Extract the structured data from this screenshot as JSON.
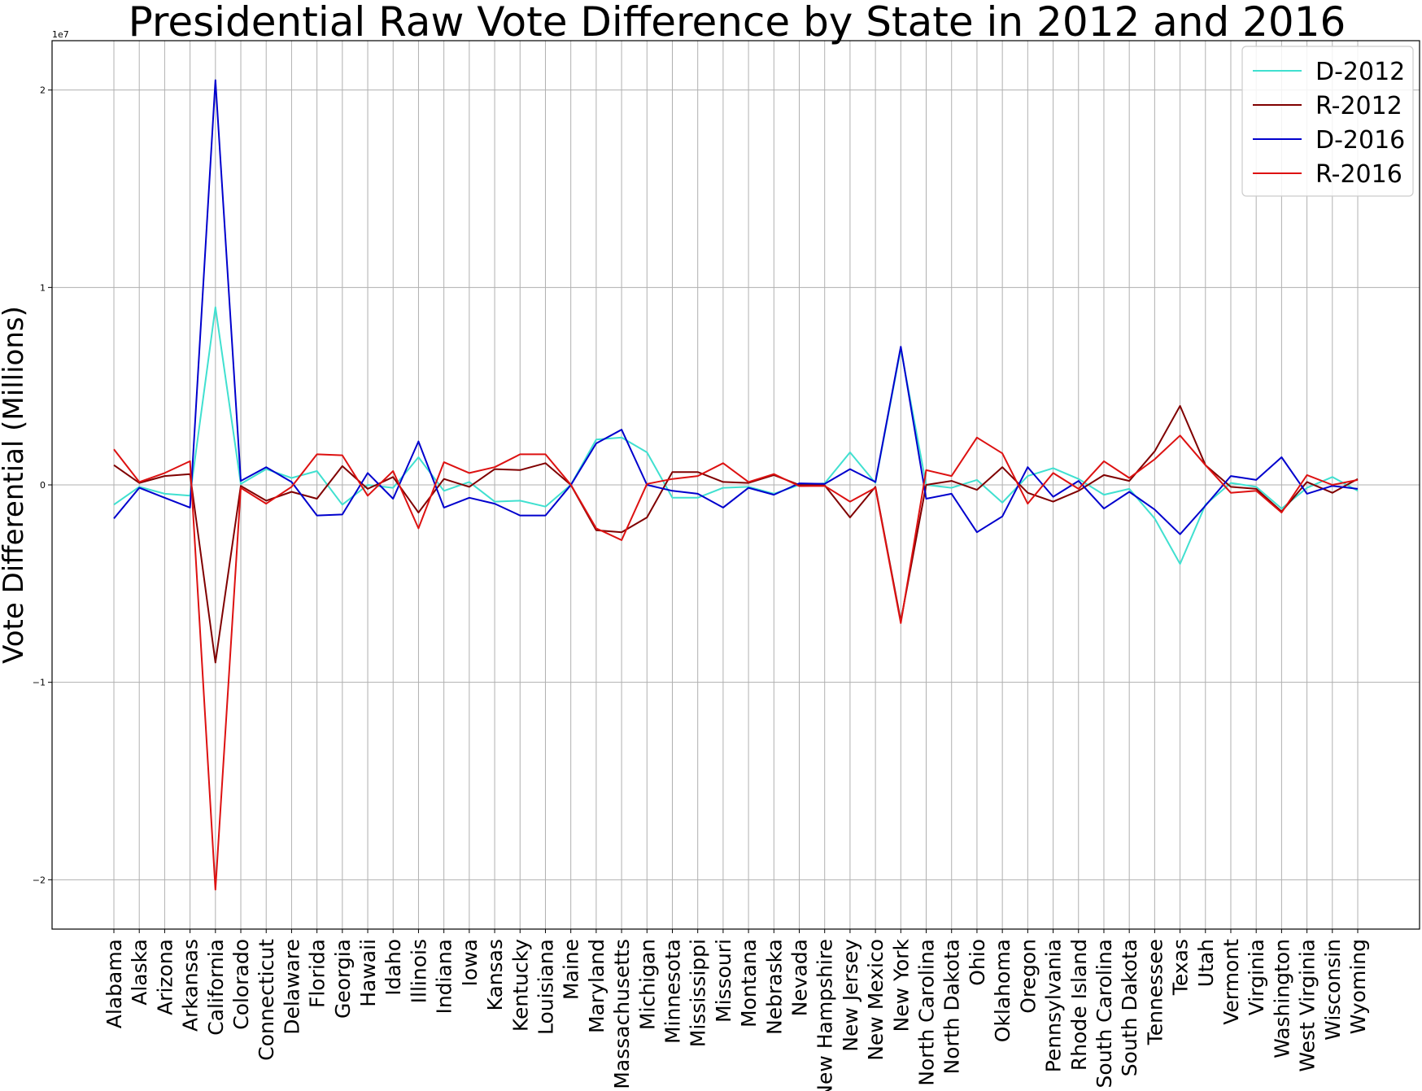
{
  "chart_data": {
    "type": "line",
    "title": "Presidential Raw Vote Difference by State in 2012 and 2016",
    "xlabel": "",
    "ylabel": "Vote Differential (Millions)",
    "y_offset_label": "1e7",
    "ylim": [
      -22500000,
      22500000
    ],
    "y_ticks": [
      -20000000,
      -10000000,
      0,
      10000000,
      20000000
    ],
    "y_tick_labels": [
      "−2",
      "−1",
      "0",
      "1",
      "2"
    ],
    "grid": true,
    "legend_position": "top-right",
    "categories": [
      "Alabama",
      "Alaska",
      "Arizona",
      "Arkansas",
      "California",
      "Colorado",
      "Connecticut",
      "Delaware",
      "Florida",
      "Georgia",
      "Hawaii",
      "Idaho",
      "Illinois",
      "Indiana",
      "Iowa",
      "Kansas",
      "Kentucky",
      "Louisiana",
      "Maine",
      "Maryland",
      "Massachusetts",
      "Michigan",
      "Minnesota",
      "Mississippi",
      "Missouri",
      "Montana",
      "Nebraska",
      "Nevada",
      "New Hampshire",
      "New Jersey",
      "New Mexico",
      "New York",
      "North Carolina",
      "North Dakota",
      "Ohio",
      "Oklahoma",
      "Oregon",
      "Pennsylvania",
      "Rhode Island",
      "South Carolina",
      "South Dakota",
      "Tennessee",
      "Texas",
      "Utah",
      "Vermont",
      "Virginia",
      "Washington",
      "West Virginia",
      "Wisconsin",
      "Wyoming"
    ],
    "series": [
      {
        "name": "D-2012",
        "color": "#40e0d0",
        "values": [
          -1000000,
          -100000,
          -450000,
          -550000,
          9000000,
          50000,
          800000,
          350000,
          700000,
          -1000000,
          0,
          -150000,
          1400000,
          -300000,
          150000,
          -850000,
          -800000,
          -1100000,
          0,
          2300000,
          2400000,
          1650000,
          -650000,
          -650000,
          -150000,
          -100000,
          -450000,
          0,
          80000,
          1650000,
          100000,
          6900000,
          0,
          -150000,
          250000,
          -900000,
          450000,
          850000,
          300000,
          -500000,
          -200000,
          -1700000,
          -4000000,
          -1000000,
          100000,
          -100000,
          -1200000,
          -150000,
          400000,
          -300000
        ]
      },
      {
        "name": "R-2012",
        "color": "#800000",
        "values": [
          1000000,
          100000,
          450000,
          550000,
          -9000000,
          -50000,
          -800000,
          -350000,
          -700000,
          950000,
          -200000,
          400000,
          -1400000,
          300000,
          -100000,
          800000,
          750000,
          1100000,
          0,
          -2300000,
          -2400000,
          -1650000,
          650000,
          650000,
          150000,
          100000,
          500000,
          0,
          -20000,
          -1650000,
          -100000,
          -6900000,
          0,
          200000,
          -250000,
          900000,
          -400000,
          -850000,
          -300000,
          500000,
          200000,
          1700000,
          4000000,
          1000000,
          -100000,
          -200000,
          -1350000,
          150000,
          -400000,
          300000
        ]
      },
      {
        "name": "D-2016",
        "color": "#0000cd",
        "values": [
          -1700000,
          -150000,
          -650000,
          -1150000,
          20500000,
          200000,
          900000,
          150000,
          -1550000,
          -1500000,
          600000,
          -700000,
          2200000,
          -1150000,
          -650000,
          -950000,
          -1550000,
          -1550000,
          -10000,
          2100000,
          2800000,
          0,
          -300000,
          -450000,
          -1150000,
          -150000,
          -500000,
          80000,
          50000,
          800000,
          150000,
          7000000,
          -700000,
          -450000,
          -2400000,
          -1600000,
          900000,
          -600000,
          200000,
          -1200000,
          -350000,
          -1250000,
          -2500000,
          -1050000,
          450000,
          250000,
          1400000,
          -450000,
          -50000,
          -200000
        ]
      },
      {
        "name": "R-2016",
        "color": "#dd1111",
        "values": [
          1800000,
          150000,
          600000,
          1200000,
          -20500000,
          -150000,
          -950000,
          -100000,
          1550000,
          1500000,
          -550000,
          700000,
          -2200000,
          1150000,
          600000,
          900000,
          1550000,
          1550000,
          10000,
          -2200000,
          -2800000,
          50000,
          300000,
          450000,
          1100000,
          150000,
          550000,
          -60000,
          -50000,
          -850000,
          -150000,
          -7000000,
          750000,
          450000,
          2400000,
          1600000,
          -950000,
          600000,
          -200000,
          1200000,
          350000,
          1300000,
          2500000,
          1000000,
          -400000,
          -300000,
          -1400000,
          500000,
          0,
          250000
        ]
      }
    ]
  }
}
